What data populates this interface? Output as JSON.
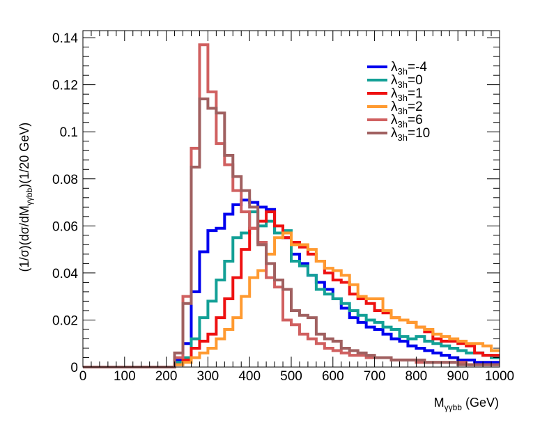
{
  "chart_data": {
    "type": "line",
    "drawstyle": "steps",
    "title": "",
    "xlabel_parts": {
      "main": "M",
      "sub": "γγbb",
      "unit": " (GeV)"
    },
    "ylabel_parts": {
      "pre": "(1/σ)(dσ/dM",
      "sub": "γγbb",
      "post": ")(1/20 GeV)"
    },
    "xlim": [
      0,
      1000
    ],
    "ylim": [
      0,
      0.143
    ],
    "x_ticks": [
      0,
      100,
      200,
      300,
      400,
      500,
      600,
      700,
      800,
      900,
      1000
    ],
    "x_tick_labels": [
      "0",
      "100",
      "200",
      "300",
      "400",
      "500",
      "600",
      "700",
      "800",
      "900",
      "1000"
    ],
    "y_ticks": [
      0,
      0.02,
      0.04,
      0.06,
      0.08,
      0.1,
      0.12,
      0.14
    ],
    "y_tick_labels": [
      "0",
      "0.02",
      "0.04",
      "0.06",
      "0.08",
      "0.1",
      "0.12",
      "0.14"
    ],
    "bin_edges_start": 0,
    "bin_width": 20,
    "legend_position": "top-right",
    "series": [
      {
        "name": "λ3h=-4",
        "lambda_symbol": "λ",
        "sub": "3h",
        "value_text": "=-4",
        "color": "#0000ee",
        "values": [
          0,
          0,
          0,
          0,
          0,
          0,
          0,
          0,
          0,
          0,
          0,
          0.003,
          0.01,
          0.032,
          0.049,
          0.058,
          0.059,
          0.065,
          0.069,
          0.071,
          0.07,
          0.068,
          0.067,
          0.057,
          0.055,
          0.048,
          0.044,
          0.039,
          0.036,
          0.033,
          0.029,
          0.025,
          0.021,
          0.019,
          0.017,
          0.016,
          0.014,
          0.012,
          0.011,
          0.009,
          0.008,
          0.007,
          0.006,
          0.005,
          0.004,
          0.003,
          0.003,
          0.002,
          0.002,
          0.002
        ]
      },
      {
        "name": "λ3h=0",
        "lambda_symbol": "λ",
        "sub": "3h",
        "value_text": "=0",
        "color": "#13a096",
        "values": [
          0,
          0,
          0,
          0,
          0,
          0,
          0,
          0,
          0,
          0,
          0,
          0.002,
          0.004,
          0.012,
          0.021,
          0.028,
          0.037,
          0.045,
          0.055,
          0.057,
          0.066,
          0.06,
          0.062,
          0.057,
          0.058,
          0.045,
          0.043,
          0.039,
          0.033,
          0.031,
          0.029,
          0.027,
          0.024,
          0.022,
          0.02,
          0.019,
          0.017,
          0.016,
          0.013,
          0.012,
          0.013,
          0.011,
          0.01,
          0.009,
          0.008,
          0.007,
          0.006,
          0.006,
          0.005,
          0.004
        ]
      },
      {
        "name": "λ3h=1",
        "lambda_symbol": "λ",
        "sub": "3h",
        "value_text": "=1",
        "color": "#ee1111",
        "values": [
          0,
          0,
          0,
          0,
          0,
          0,
          0,
          0,
          0,
          0,
          0,
          0.001,
          0.003,
          0.008,
          0.011,
          0.014,
          0.021,
          0.029,
          0.038,
          0.05,
          0.059,
          0.062,
          0.066,
          0.06,
          0.055,
          0.053,
          0.051,
          0.048,
          0.045,
          0.04,
          0.037,
          0.036,
          0.031,
          0.029,
          0.027,
          0.024,
          0.023,
          0.021,
          0.02,
          0.019,
          0.017,
          0.015,
          0.012,
          0.011,
          0.011,
          0.01,
          0.009,
          0.006,
          0.005,
          0.005
        ]
      },
      {
        "name": "λ3h=2",
        "lambda_symbol": "λ",
        "sub": "3h",
        "value_text": "=2",
        "color": "#ff9a30",
        "values": [
          0,
          0,
          0,
          0,
          0,
          0,
          0,
          0,
          0,
          0,
          0,
          0.001,
          0.002,
          0.004,
          0.006,
          0.008,
          0.012,
          0.016,
          0.021,
          0.03,
          0.038,
          0.041,
          0.048,
          0.055,
          0.057,
          0.052,
          0.052,
          0.05,
          0.045,
          0.042,
          0.041,
          0.039,
          0.035,
          0.03,
          0.029,
          0.029,
          0.024,
          0.021,
          0.02,
          0.019,
          0.017,
          0.016,
          0.014,
          0.013,
          0.012,
          0.011,
          0.01,
          0.01,
          0.009,
          0.007
        ]
      },
      {
        "name": "λ3h=6",
        "lambda_symbol": "λ",
        "sub": "3h",
        "value_text": "=6",
        "color": "#d06060",
        "values": [
          0,
          0,
          0,
          0,
          0,
          0,
          0,
          0,
          0,
          0,
          0,
          0.004,
          0.03,
          0.093,
          0.137,
          0.117,
          0.095,
          0.086,
          0.075,
          0.066,
          0.059,
          0.053,
          0.038,
          0.034,
          0.02,
          0.018,
          0.014,
          0.012,
          0.01,
          0.008,
          0.007,
          0.006,
          0.005,
          0.005,
          0.004,
          0.004,
          0.004,
          0.003,
          0.003,
          0.003,
          0.002,
          0.002,
          0.002,
          0.002,
          0.002,
          0.002,
          0.001,
          0.001,
          0.001,
          0.001
        ]
      },
      {
        "name": "λ3h=10",
        "lambda_symbol": "λ",
        "sub": "3h",
        "value_text": "=10",
        "color": "#a06060",
        "values": [
          0,
          0,
          0,
          0,
          0,
          0,
          0,
          0,
          0,
          0,
          0,
          0.006,
          0.027,
          0.085,
          0.114,
          0.11,
          0.108,
          0.09,
          0.081,
          0.075,
          0.068,
          0.052,
          0.044,
          0.037,
          0.033,
          0.024,
          0.022,
          0.021,
          0.014,
          0.012,
          0.011,
          0.008,
          0.007,
          0.006,
          0.005,
          0.004,
          0.004,
          0.003,
          0.003,
          0.003,
          0.003,
          0.002,
          0.002,
          0.002,
          0.002,
          0.001,
          0.001,
          0.001,
          0.001,
          0.001
        ]
      }
    ]
  }
}
